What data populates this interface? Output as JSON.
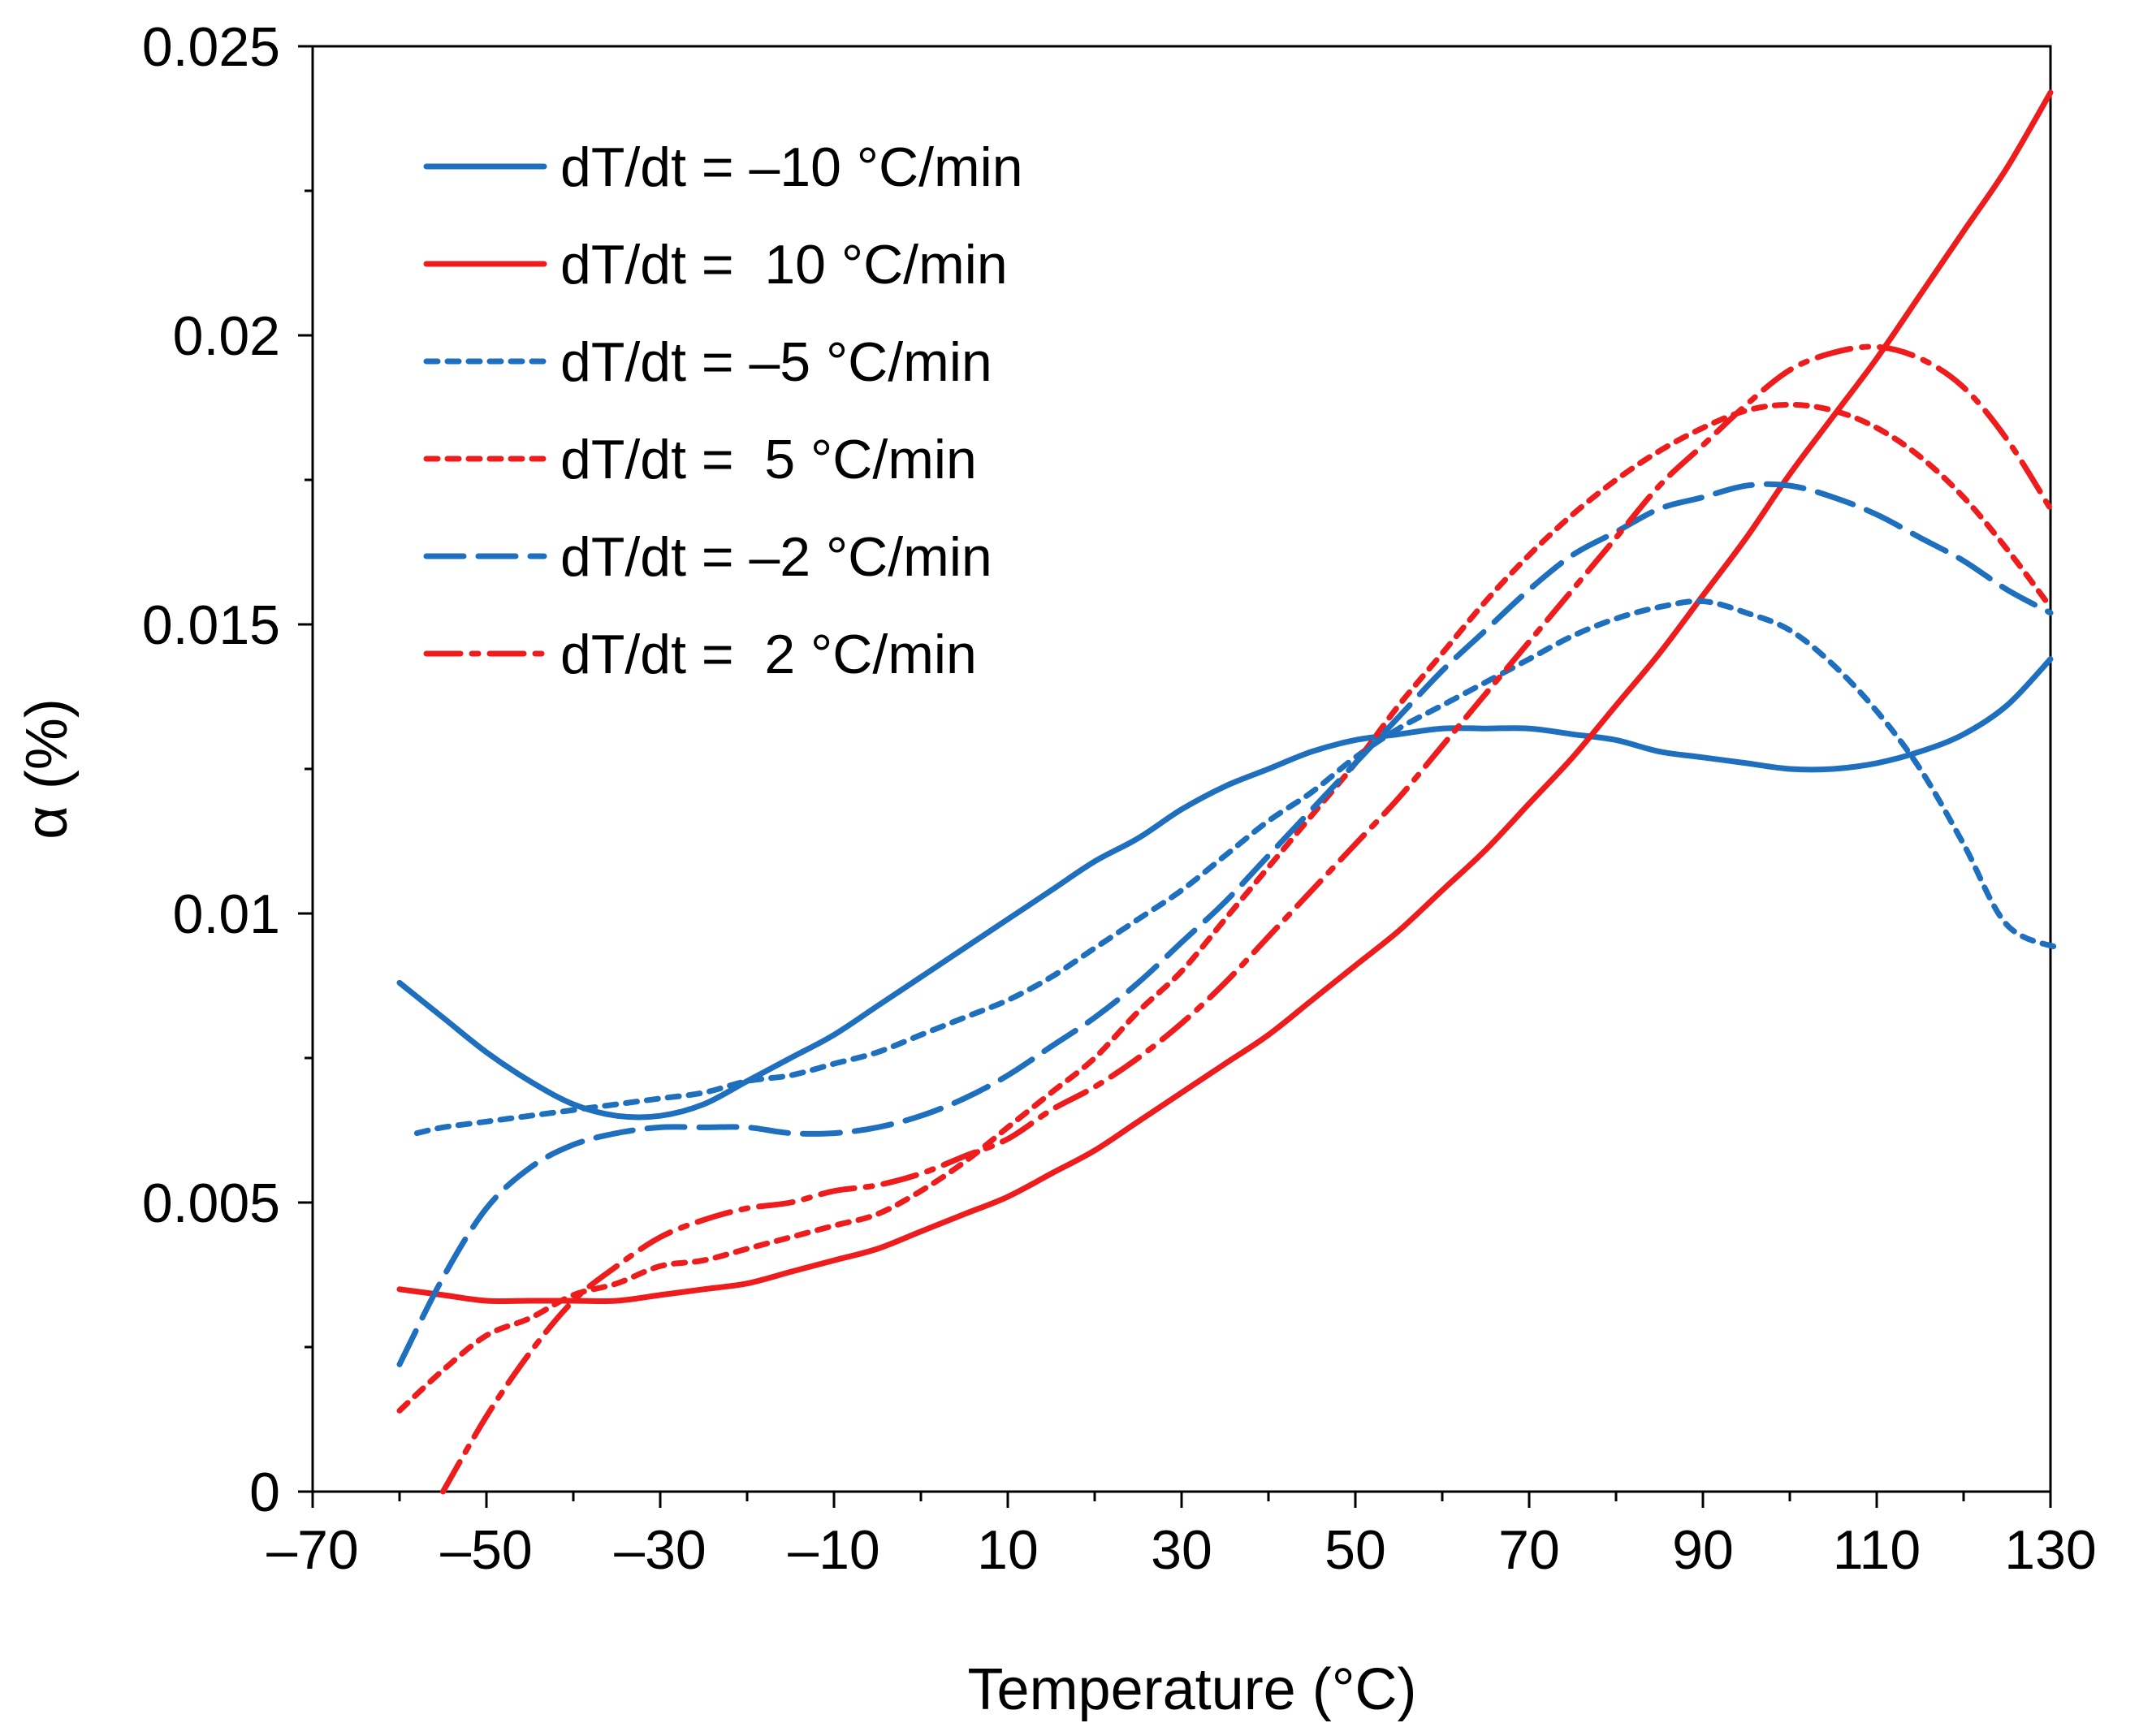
{
  "chart_data": {
    "type": "line",
    "xlabel": "Temperature  (°C)",
    "ylabel": "α (%)",
    "xlim": [
      -70,
      130
    ],
    "ylim": [
      0,
      0.025
    ],
    "x_ticks": [
      -70,
      -50,
      -30,
      -10,
      10,
      30,
      50,
      70,
      90,
      110,
      130
    ],
    "x_tick_labels": [
      "–70",
      "–50",
      "–30",
      "–10",
      "10",
      "30",
      "50",
      "70",
      "90",
      "110",
      "130"
    ],
    "y_ticks": [
      0,
      0.005,
      0.01,
      0.015,
      0.02,
      0.025
    ],
    "y_tick_labels": [
      "0",
      "0.005",
      "0.01",
      "0.015",
      "0.02",
      "0.025"
    ],
    "grid": false,
    "legend_position": "top-left",
    "series": [
      {
        "name": "dT/dt = –10 °C/min",
        "color": "#1f6fbf",
        "style": "solid",
        "x": [
          -60,
          -55,
          -50,
          -45,
          -40,
          -35,
          -30,
          -25,
          -20,
          -15,
          -10,
          -5,
          0,
          5,
          10,
          15,
          20,
          25,
          30,
          35,
          40,
          45,
          50,
          55,
          60,
          65,
          70,
          75,
          80,
          85,
          90,
          95,
          100,
          105,
          110,
          115,
          120,
          125,
          130
        ],
        "y": [
          0.0088,
          0.0082,
          0.0076,
          0.0071,
          0.0067,
          0.0065,
          0.0065,
          0.0067,
          0.0071,
          0.0075,
          0.0079,
          0.0084,
          0.0089,
          0.0094,
          0.0099,
          0.0104,
          0.0109,
          0.0113,
          0.0118,
          0.0122,
          0.0125,
          0.0128,
          0.013,
          0.0131,
          0.0132,
          0.0132,
          0.0132,
          0.0131,
          0.013,
          0.0128,
          0.0127,
          0.0126,
          0.0125,
          0.0125,
          0.0126,
          0.0128,
          0.0131,
          0.0136,
          0.0144
        ]
      },
      {
        "name": "dT/dt =  10 °C/min",
        "color": "#ee1c1c",
        "style": "solid",
        "x": [
          -60,
          -55,
          -50,
          -45,
          -40,
          -35,
          -30,
          -25,
          -20,
          -15,
          -10,
          -5,
          0,
          5,
          10,
          15,
          20,
          25,
          30,
          35,
          40,
          45,
          50,
          55,
          60,
          65,
          70,
          75,
          80,
          85,
          90,
          95,
          100,
          105,
          110,
          115,
          120,
          125,
          130
        ],
        "y": [
          0.0035,
          0.0034,
          0.0033,
          0.0033,
          0.0033,
          0.0033,
          0.0034,
          0.0035,
          0.0036,
          0.0038,
          0.004,
          0.0042,
          0.0045,
          0.0048,
          0.0051,
          0.0055,
          0.0059,
          0.0064,
          0.0069,
          0.0074,
          0.0079,
          0.0085,
          0.0091,
          0.0097,
          0.0104,
          0.0111,
          0.0119,
          0.0127,
          0.0136,
          0.0145,
          0.0155,
          0.0165,
          0.0176,
          0.0186,
          0.0196,
          0.0207,
          0.0218,
          0.0229,
          0.0242
        ]
      },
      {
        "name": "dT/dt = –5 °C/min",
        "color": "#1f6fbf",
        "style": "dash",
        "x": [
          -58,
          -55,
          -50,
          -45,
          -40,
          -35,
          -30,
          -25,
          -20,
          -15,
          -10,
          -5,
          0,
          5,
          10,
          15,
          20,
          25,
          30,
          35,
          40,
          45,
          50,
          55,
          60,
          65,
          70,
          75,
          80,
          85,
          90,
          95,
          100,
          105,
          110,
          115,
          120,
          125,
          131
        ],
        "y": [
          0.0062,
          0.0063,
          0.0064,
          0.0065,
          0.0066,
          0.0067,
          0.0068,
          0.0069,
          0.0071,
          0.0072,
          0.0074,
          0.0076,
          0.0079,
          0.0082,
          0.0085,
          0.0089,
          0.0094,
          0.0099,
          0.0104,
          0.011,
          0.0116,
          0.0121,
          0.0127,
          0.0132,
          0.0136,
          0.014,
          0.0144,
          0.0148,
          0.0151,
          0.0153,
          0.0154,
          0.0152,
          0.0149,
          0.0143,
          0.0135,
          0.0125,
          0.0112,
          0.0098,
          0.0094
        ]
      },
      {
        "name": "dT/dt =  5 °C/min",
        "color": "#ee1c1c",
        "style": "dash",
        "x": [
          -60,
          -55,
          -50,
          -45,
          -40,
          -35,
          -30,
          -25,
          -20,
          -15,
          -10,
          -5,
          0,
          5,
          10,
          15,
          20,
          25,
          30,
          35,
          40,
          45,
          50,
          55,
          60,
          65,
          70,
          75,
          80,
          85,
          90,
          95,
          100,
          105,
          110,
          115,
          120,
          125,
          130
        ],
        "y": [
          0.0014,
          0.0021,
          0.0027,
          0.003,
          0.0034,
          0.0036,
          0.0039,
          0.004,
          0.0042,
          0.0044,
          0.0046,
          0.0048,
          0.0052,
          0.0057,
          0.0063,
          0.0069,
          0.0075,
          0.0083,
          0.009,
          0.0099,
          0.0108,
          0.0117,
          0.0126,
          0.0136,
          0.0145,
          0.0154,
          0.0162,
          0.0169,
          0.0175,
          0.018,
          0.0184,
          0.0187,
          0.0188,
          0.0187,
          0.0184,
          0.0179,
          0.0172,
          0.0163,
          0.0153
        ]
      },
      {
        "name": "dT/dt = –2 °C/min",
        "color": "#1f6fbf",
        "style": "longdash",
        "x": [
          -60,
          -55,
          -50,
          -45,
          -40,
          -35,
          -30,
          -25,
          -20,
          -15,
          -10,
          -5,
          0,
          5,
          10,
          15,
          20,
          25,
          30,
          35,
          40,
          45,
          50,
          55,
          60,
          65,
          70,
          75,
          80,
          85,
          90,
          95,
          100,
          105,
          110,
          115,
          120,
          125,
          130
        ],
        "y": [
          0.0022,
          0.0037,
          0.0049,
          0.0056,
          0.006,
          0.0062,
          0.0063,
          0.0063,
          0.0063,
          0.0062,
          0.0062,
          0.0063,
          0.0065,
          0.0068,
          0.0072,
          0.0077,
          0.0082,
          0.0088,
          0.0095,
          0.0102,
          0.011,
          0.0118,
          0.0126,
          0.0134,
          0.0142,
          0.0149,
          0.0156,
          0.0162,
          0.0166,
          0.017,
          0.0172,
          0.0174,
          0.0174,
          0.0172,
          0.0169,
          0.0165,
          0.0161,
          0.0156,
          0.0152
        ]
      },
      {
        "name": "dT/dt =  2 °C/min",
        "color": "#ee1c1c",
        "style": "dashdot",
        "x": [
          -55,
          -50,
          -45,
          -40,
          -35,
          -30,
          -25,
          -20,
          -15,
          -10,
          -5,
          0,
          5,
          10,
          15,
          20,
          25,
          30,
          35,
          40,
          45,
          50,
          55,
          60,
          65,
          70,
          75,
          80,
          85,
          90,
          95,
          100,
          105,
          110,
          115,
          120,
          125,
          130
        ],
        "y": [
          0.0,
          0.0013,
          0.0024,
          0.0033,
          0.0039,
          0.0044,
          0.0047,
          0.0049,
          0.005,
          0.0052,
          0.0053,
          0.0055,
          0.0058,
          0.0061,
          0.0066,
          0.007,
          0.0075,
          0.0081,
          0.0088,
          0.0096,
          0.0104,
          0.0112,
          0.012,
          0.0129,
          0.0138,
          0.0147,
          0.0156,
          0.0165,
          0.0174,
          0.0181,
          0.0188,
          0.0194,
          0.0197,
          0.0198,
          0.0196,
          0.0191,
          0.0182,
          0.017
        ]
      }
    ]
  }
}
